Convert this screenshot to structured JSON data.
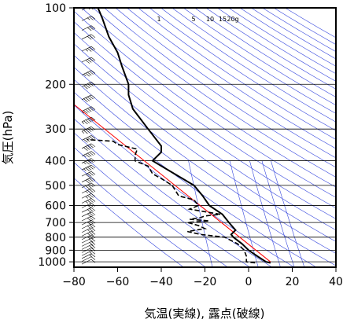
{
  "chart_data": {
    "type": "line",
    "xlabel": "気温(実線), 露点(破線)",
    "ylabel": "気圧(hPa)",
    "xlim": [
      -80,
      40
    ],
    "ylim": [
      1050,
      100
    ],
    "yscale": "log",
    "x_ticks": [
      -80,
      -60,
      -40,
      -20,
      0,
      20,
      40
    ],
    "y_ticks": [
      100,
      200,
      300,
      400,
      500,
      600,
      700,
      800,
      900,
      1000
    ],
    "mixing_ratio_labels": [
      "1",
      "5",
      "10",
      "15",
      "20g"
    ],
    "mixing_ratios": [
      1,
      5,
      10,
      15,
      20
    ],
    "colors": {
      "temperature": "#000000",
      "dewpoint": "#000000",
      "isolines": "#3344dd",
      "reference": "#ff0000",
      "grid": "#000000"
    },
    "series": [
      {
        "style": "solid",
        "p": [
          1010,
          1000,
          950,
          900,
          850,
          800,
          780,
          750,
          700,
          650,
          600,
          550,
          500,
          450,
          400,
          370,
          350,
          300,
          250,
          220,
          200,
          170,
          150,
          130,
          110,
          100
        ],
        "t": [
          10,
          8,
          4,
          0,
          -3,
          -7,
          -8,
          -6,
          -9,
          -12,
          -18,
          -21,
          -25,
          -34,
          -44,
          -40,
          -40,
          -46,
          -53,
          -55,
          -55,
          -58,
          -60,
          -64,
          -67,
          -69
        ]
      },
      {
        "style": "dashed",
        "p": [
          1010,
          1000,
          950,
          900,
          850,
          800,
          780,
          760,
          740,
          720,
          700,
          690,
          680,
          670,
          660,
          650,
          620,
          600,
          570,
          550,
          500,
          470,
          450,
          420,
          400,
          380,
          360,
          345,
          335,
          330
        ],
        "td": [
          3,
          -1,
          -1,
          -2,
          -5,
          -11,
          -22,
          -28,
          -20,
          -23,
          -28,
          -18,
          -27,
          -22,
          -20,
          -13,
          -27,
          -23,
          -25,
          -32,
          -35,
          -40,
          -44,
          -46,
          -52,
          -52,
          -51,
          -60,
          -62,
          -74
        ]
      },
      {
        "style": "reference",
        "p": [
          1000,
          240
        ],
        "t": [
          10,
          -80
        ]
      }
    ],
    "wind_barbs": [
      {
        "p": 1000,
        "speed": 10
      },
      {
        "p": 975,
        "speed": 10
      },
      {
        "p": 950,
        "speed": 15
      },
      {
        "p": 925,
        "speed": 15
      },
      {
        "p": 900,
        "speed": 15
      },
      {
        "p": 875,
        "speed": 20
      },
      {
        "p": 850,
        "speed": 20
      },
      {
        "p": 825,
        "speed": 20
      },
      {
        "p": 800,
        "speed": 25
      },
      {
        "p": 775,
        "speed": 25
      },
      {
        "p": 750,
        "speed": 25
      },
      {
        "p": 725,
        "speed": 25
      },
      {
        "p": 700,
        "speed": 30
      },
      {
        "p": 675,
        "speed": 30
      },
      {
        "p": 650,
        "speed": 30
      },
      {
        "p": 625,
        "speed": 30
      },
      {
        "p": 600,
        "speed": 30
      },
      {
        "p": 575,
        "speed": 35
      },
      {
        "p": 550,
        "speed": 35
      },
      {
        "p": 525,
        "speed": 35
      },
      {
        "p": 500,
        "speed": 40
      },
      {
        "p": 475,
        "speed": 40
      },
      {
        "p": 450,
        "speed": 40
      },
      {
        "p": 425,
        "speed": 45
      },
      {
        "p": 400,
        "speed": 45
      },
      {
        "p": 375,
        "speed": 45
      },
      {
        "p": 350,
        "speed": 50
      },
      {
        "p": 325,
        "speed": 50
      },
      {
        "p": 300,
        "speed": 55
      },
      {
        "p": 275,
        "speed": 55
      },
      {
        "p": 250,
        "speed": 55
      },
      {
        "p": 225,
        "speed": 50
      },
      {
        "p": 200,
        "speed": 50
      },
      {
        "p": 180,
        "speed": 45
      },
      {
        "p": 160,
        "speed": 40
      },
      {
        "p": 145,
        "speed": 35
      },
      {
        "p": 130,
        "speed": 30
      },
      {
        "p": 120,
        "speed": 30
      },
      {
        "p": 110,
        "speed": 25
      },
      {
        "p": 100,
        "speed": 25
      }
    ]
  }
}
